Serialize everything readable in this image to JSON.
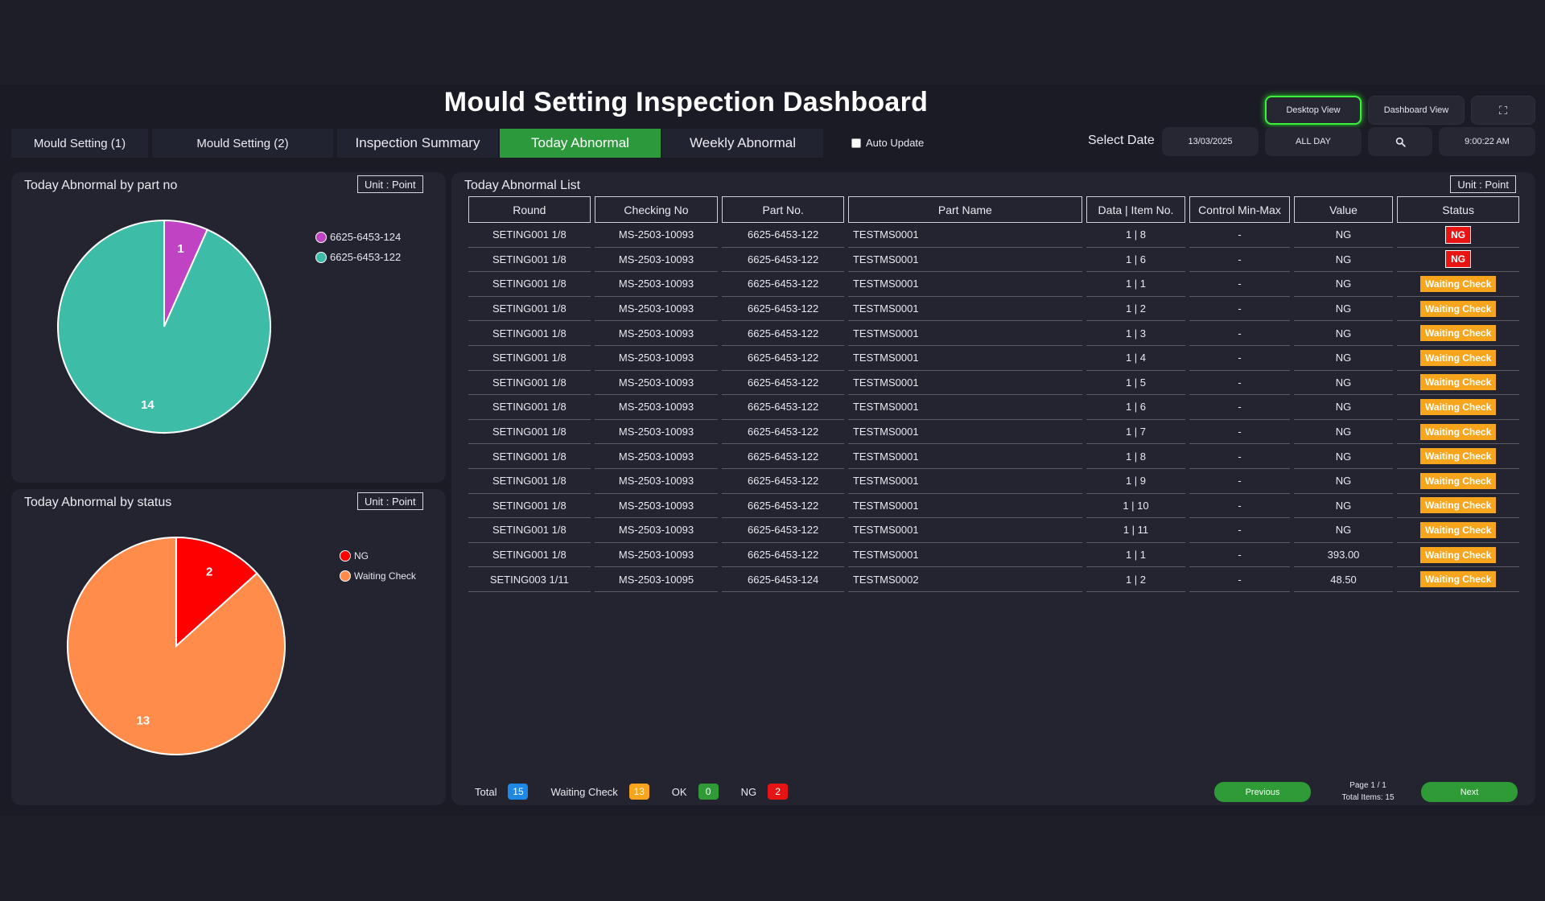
{
  "title": "Mould Setting Inspection Dashboard",
  "views": {
    "desktop": "Desktop View",
    "dashboard": "Dashboard View"
  },
  "tabs": [
    "Mould  Setting (1)",
    "Mould  Setting (2)",
    "Inspection Summary",
    "Today Abnormal",
    "Weekly Abnormal"
  ],
  "auto_update": "Auto Update",
  "select_date_label": "Select Date",
  "date": "13/03/2025",
  "range": "ALL DAY",
  "time": "9:00:22 AM",
  "unit_label": "Unit : Point",
  "panels": {
    "part": "Today Abnormal by part no",
    "status": "Today Abnormal by status",
    "list": "Today Abnormal List"
  },
  "chart_data": [
    {
      "type": "pie",
      "title": "Today Abnormal by part no",
      "series": [
        {
          "name": "6625-6453-124",
          "value": 1,
          "color": "#c043c3"
        },
        {
          "name": "6625-6453-122",
          "value": 14,
          "color": "#3dbca7"
        }
      ]
    },
    {
      "type": "pie",
      "title": "Today Abnormal by status",
      "series": [
        {
          "name": "NG",
          "value": 2,
          "color": "#ff0000"
        },
        {
          "name": "Waiting Check",
          "value": 13,
          "color": "#ff8c4b"
        }
      ]
    }
  ],
  "table": {
    "headers": [
      "Round",
      "Checking No",
      "Part No.",
      "Part Name",
      "Data | Item No.",
      "Control Min-Max",
      "Value",
      "Status"
    ],
    "rows": [
      [
        "SETING001 1/8",
        "MS-2503-10093",
        "6625-6453-122",
        "TESTMS0001",
        "1 | 8",
        "-",
        "NG",
        "NG"
      ],
      [
        "SETING001 1/8",
        "MS-2503-10093",
        "6625-6453-122",
        "TESTMS0001",
        "1 | 6",
        "-",
        "NG",
        "NG"
      ],
      [
        "SETING001 1/8",
        "MS-2503-10093",
        "6625-6453-122",
        "TESTMS0001",
        "1 | 1",
        "-",
        "NG",
        "Waiting Check"
      ],
      [
        "SETING001 1/8",
        "MS-2503-10093",
        "6625-6453-122",
        "TESTMS0001",
        "1 | 2",
        "-",
        "NG",
        "Waiting Check"
      ],
      [
        "SETING001 1/8",
        "MS-2503-10093",
        "6625-6453-122",
        "TESTMS0001",
        "1 | 3",
        "-",
        "NG",
        "Waiting Check"
      ],
      [
        "SETING001 1/8",
        "MS-2503-10093",
        "6625-6453-122",
        "TESTMS0001",
        "1 | 4",
        "-",
        "NG",
        "Waiting Check"
      ],
      [
        "SETING001 1/8",
        "MS-2503-10093",
        "6625-6453-122",
        "TESTMS0001",
        "1 | 5",
        "-",
        "NG",
        "Waiting Check"
      ],
      [
        "SETING001 1/8",
        "MS-2503-10093",
        "6625-6453-122",
        "TESTMS0001",
        "1 | 6",
        "-",
        "NG",
        "Waiting Check"
      ],
      [
        "SETING001 1/8",
        "MS-2503-10093",
        "6625-6453-122",
        "TESTMS0001",
        "1 | 7",
        "-",
        "NG",
        "Waiting Check"
      ],
      [
        "SETING001 1/8",
        "MS-2503-10093",
        "6625-6453-122",
        "TESTMS0001",
        "1 | 8",
        "-",
        "NG",
        "Waiting Check"
      ],
      [
        "SETING001 1/8",
        "MS-2503-10093",
        "6625-6453-122",
        "TESTMS0001",
        "1 | 9",
        "-",
        "NG",
        "Waiting Check"
      ],
      [
        "SETING001 1/8",
        "MS-2503-10093",
        "6625-6453-122",
        "TESTMS0001",
        "1 | 10",
        "-",
        "NG",
        "Waiting Check"
      ],
      [
        "SETING001 1/8",
        "MS-2503-10093",
        "6625-6453-122",
        "TESTMS0001",
        "1 | 11",
        "-",
        "NG",
        "Waiting Check"
      ],
      [
        "SETING001 1/8",
        "MS-2503-10093",
        "6625-6453-122",
        "TESTMS0001",
        "1 | 1",
        "-",
        "393.00",
        "Waiting Check"
      ],
      [
        "SETING003 1/11",
        "MS-2503-10095",
        "6625-6453-124",
        "TESTMS0002",
        "1 | 2",
        "-",
        "48.50",
        "Waiting Check"
      ]
    ]
  },
  "summary": {
    "total_label": "Total",
    "total": "15",
    "waiting_label": "Waiting Check",
    "waiting": "13",
    "ok_label": "OK",
    "ok": "0",
    "ng_label": "NG",
    "ng": "2"
  },
  "pagination": {
    "previous": "Previous",
    "next": "Next",
    "page": "Page 1 / 1",
    "total_items": "Total Items: 15"
  },
  "colors": {
    "accent_green": "#2c9a3c",
    "ng_red": "#e81313",
    "waiting_orange": "#f7a51d",
    "total_blue": "#1e88e5"
  },
  "icons": {
    "search": "search-icon",
    "fullscreen": "fullscreen-icon"
  }
}
